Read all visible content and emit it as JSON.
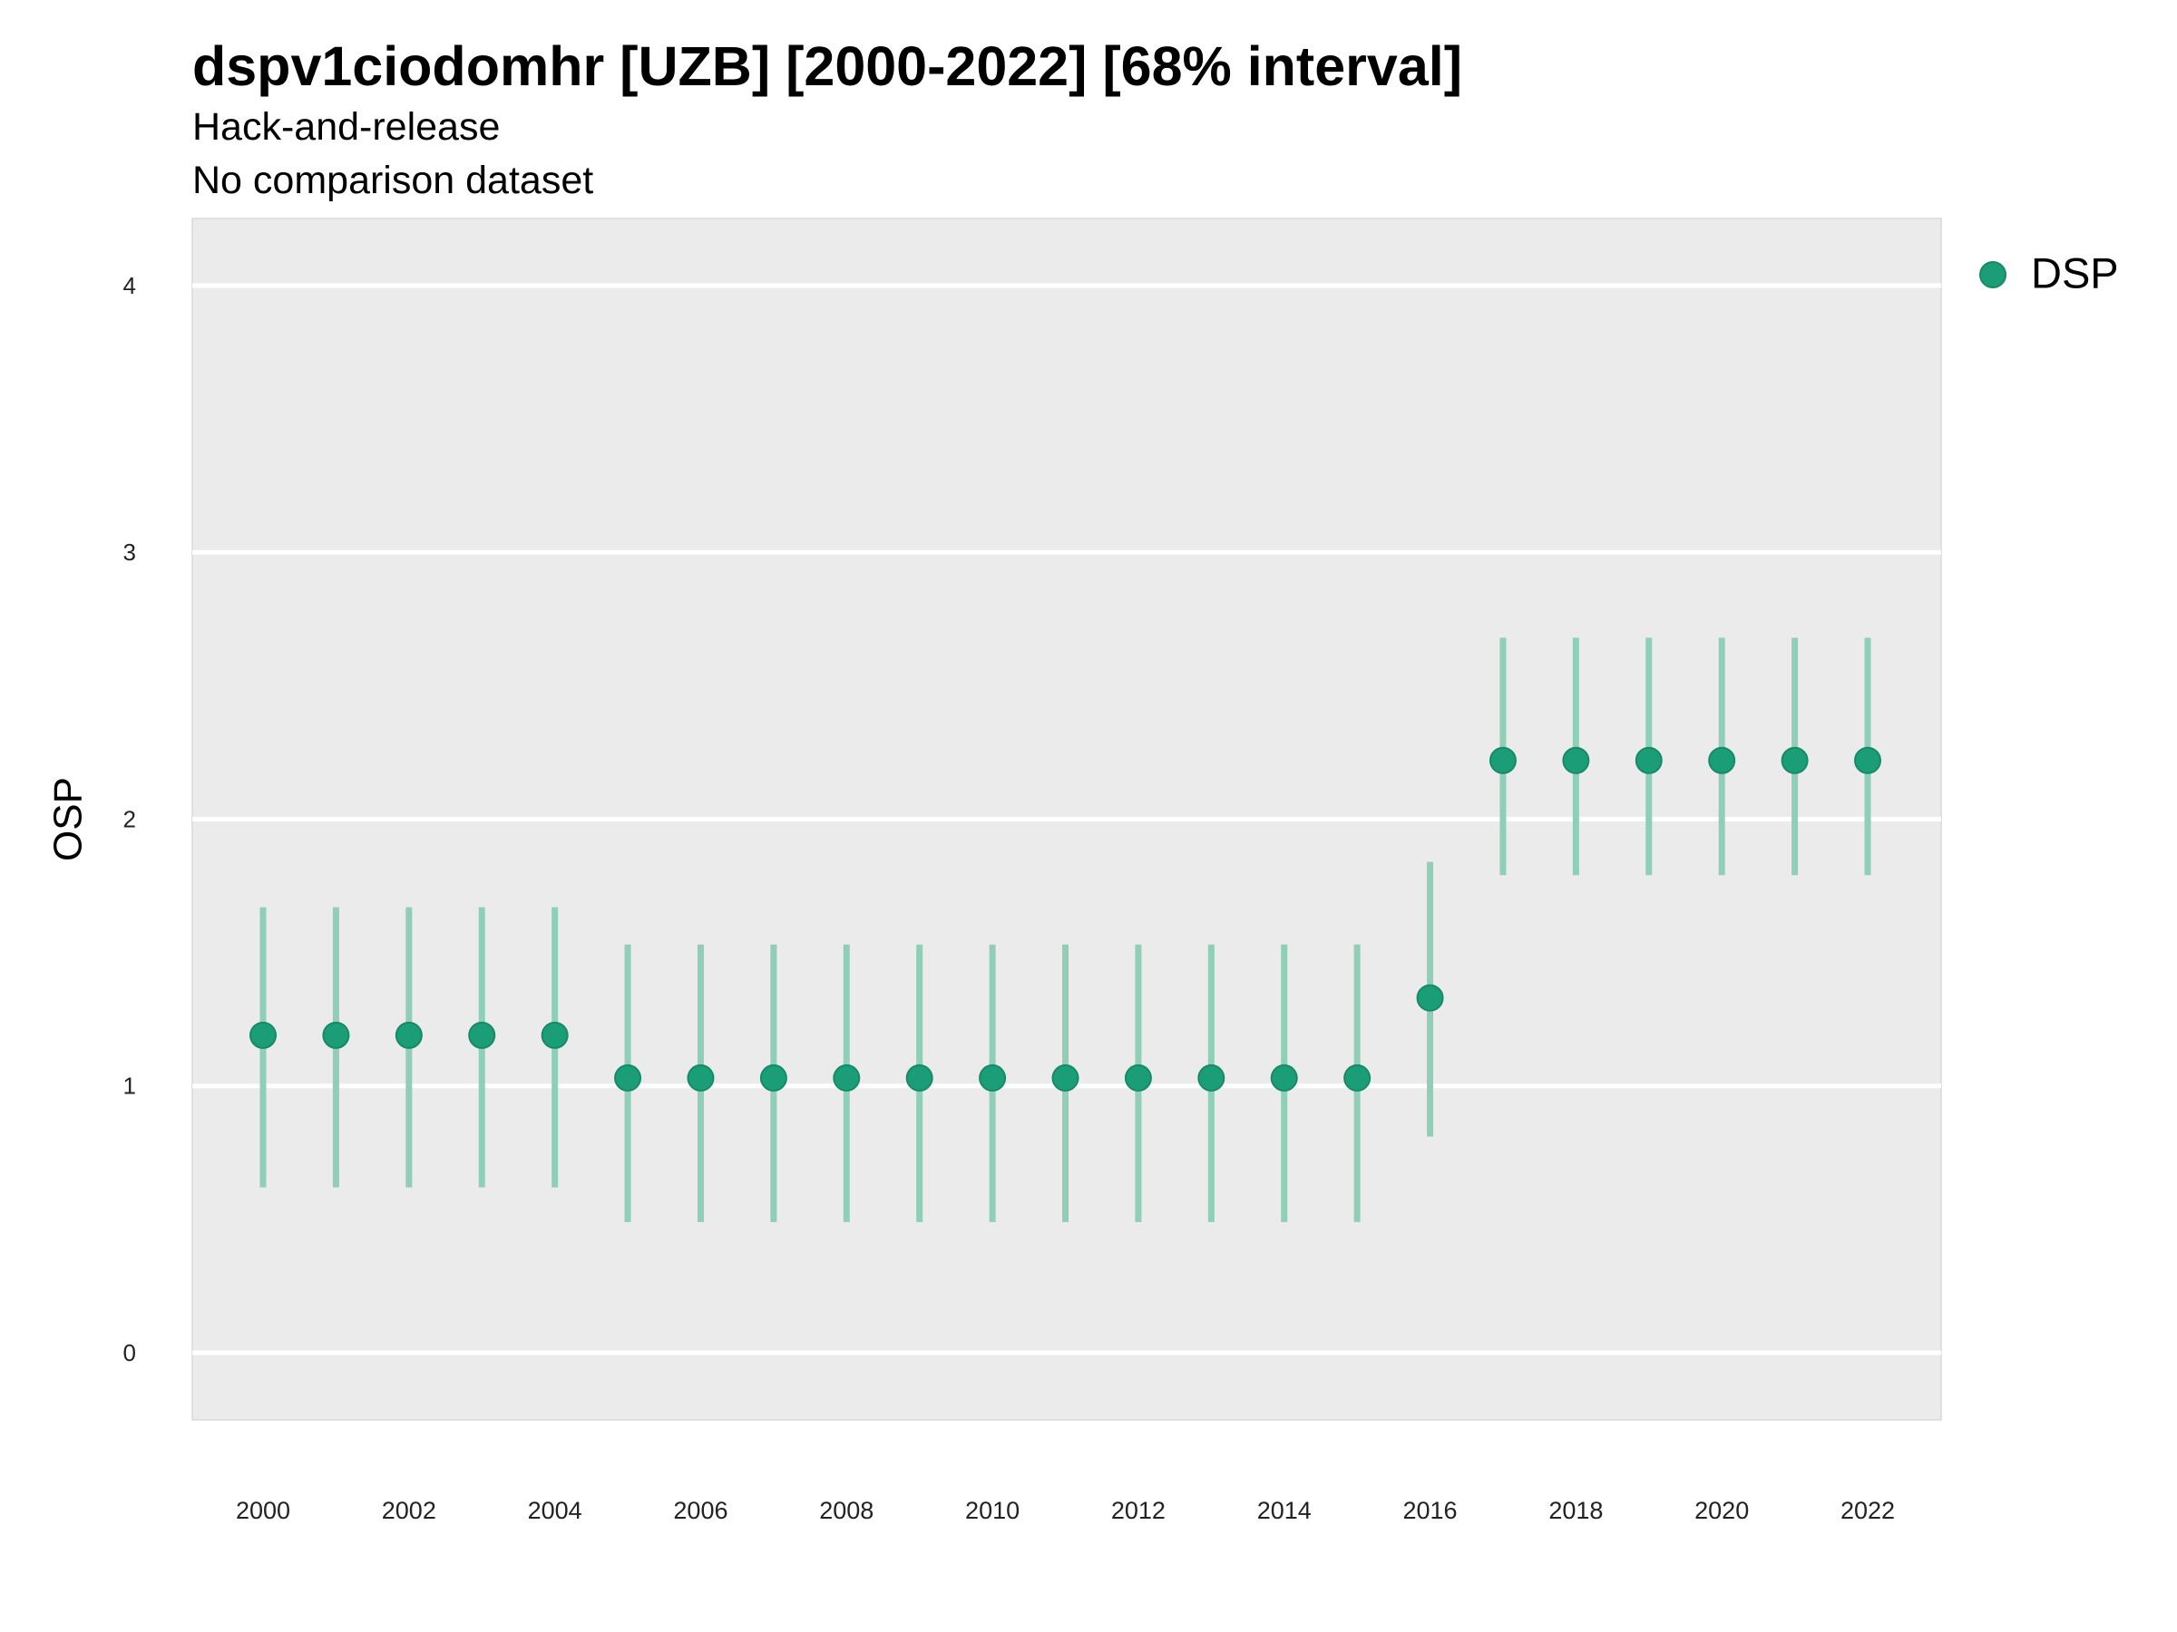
{
  "title": "dspv1ciodomhr [UZB] [2000-2022] [68% interval]",
  "subtitle_1": "Hack-and-release",
  "subtitle_2": "No comparison dataset",
  "colors": {
    "panel": "#ebebeb",
    "grid": "#ffffff",
    "point": "#1b9e77",
    "interval": "#8fcfb8"
  },
  "chart_data": {
    "type": "scatter",
    "ylabel": "OSP",
    "xlabel": "",
    "ylim": [
      -0.25,
      4.25
    ],
    "yticks": [
      0,
      1,
      2,
      3,
      4
    ],
    "xticks": [
      2000,
      2002,
      2004,
      2006,
      2008,
      2010,
      2012,
      2014,
      2016,
      2018,
      2020,
      2022
    ],
    "grid": true,
    "legend_position": "right",
    "series": [
      {
        "name": "DSP",
        "x": [
          2000,
          2001,
          2002,
          2003,
          2004,
          2005,
          2006,
          2007,
          2008,
          2009,
          2010,
          2011,
          2012,
          2013,
          2014,
          2015,
          2016,
          2017,
          2018,
          2019,
          2020,
          2021,
          2022
        ],
        "y": [
          1.19,
          1.19,
          1.19,
          1.19,
          1.19,
          1.03,
          1.03,
          1.03,
          1.03,
          1.03,
          1.03,
          1.03,
          1.03,
          1.03,
          1.03,
          1.03,
          1.33,
          2.22,
          2.22,
          2.22,
          2.22,
          2.22,
          2.22
        ],
        "lower": [
          0.62,
          0.62,
          0.62,
          0.62,
          0.62,
          0.49,
          0.49,
          0.49,
          0.49,
          0.49,
          0.49,
          0.49,
          0.49,
          0.49,
          0.49,
          0.49,
          0.81,
          1.79,
          1.79,
          1.79,
          1.79,
          1.79,
          1.79
        ],
        "upper": [
          1.67,
          1.67,
          1.67,
          1.67,
          1.67,
          1.53,
          1.53,
          1.53,
          1.53,
          1.53,
          1.53,
          1.53,
          1.53,
          1.53,
          1.53,
          1.53,
          1.84,
          2.68,
          2.68,
          2.68,
          2.68,
          2.68,
          2.68
        ]
      }
    ]
  }
}
